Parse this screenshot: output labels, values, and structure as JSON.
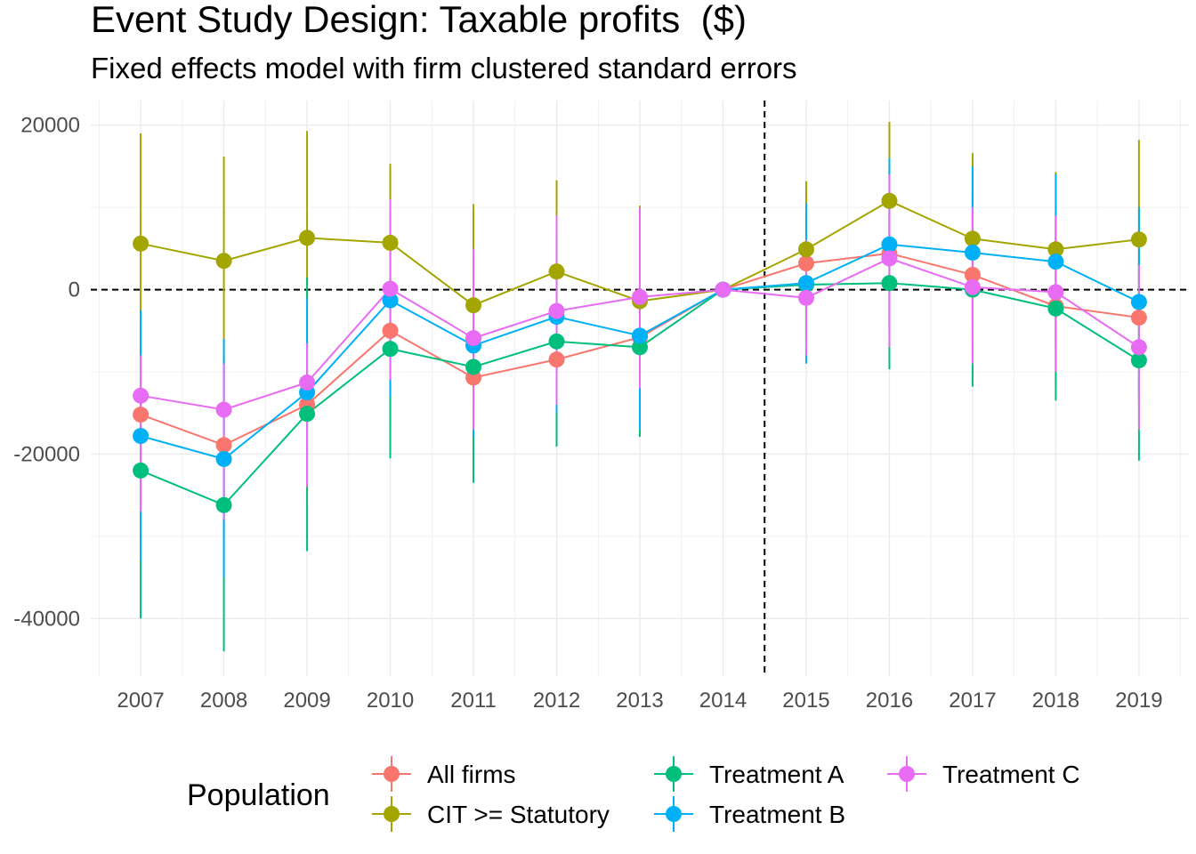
{
  "chart_data": {
    "type": "line",
    "title": "Event Study Design: Taxable profits  ($)",
    "subtitle": "Fixed effects model with firm clustered standard errors",
    "xlabel": "",
    "ylabel": "",
    "x": [
      2007,
      2008,
      2009,
      2010,
      2011,
      2012,
      2013,
      2014,
      2015,
      2016,
      2017,
      2018,
      2019
    ],
    "ylim": [
      -47000,
      23000
    ],
    "yticks": [
      20000,
      0,
      -20000,
      -40000
    ],
    "ytick_labels": [
      "20000",
      "0",
      "-20000",
      "-40000"
    ],
    "xtick_labels": [
      "2007",
      "2008",
      "2009",
      "2010",
      "2011",
      "2012",
      "2013",
      "2014",
      "2015",
      "2016",
      "2017",
      "2018",
      "2019"
    ],
    "reference_lines": {
      "horizontal": 0,
      "vertical": 2014.5
    },
    "grid": true,
    "legend": {
      "title": "Population",
      "position": "bottom"
    },
    "series": [
      {
        "name": "All firms",
        "color": "#F8766D",
        "values": [
          -15200,
          -18900,
          -14000,
          -5000,
          -10700,
          -8500,
          -5800,
          0,
          3200,
          4400,
          1800,
          -2000,
          -3400
        ],
        "lower": [
          -27000,
          -30000,
          -26000,
          -17000,
          -21000,
          -19000,
          -16000,
          0,
          -6000,
          -6000,
          -8000,
          -12000,
          -14000
        ],
        "upper": [
          -3000,
          -8000,
          -2000,
          7000,
          0,
          2000,
          5000,
          0,
          12000,
          15000,
          12000,
          8000,
          7000
        ]
      },
      {
        "name": "CIT >= Statutory",
        "color": "#A3A500",
        "values": [
          5600,
          3500,
          6300,
          5700,
          -1900,
          2200,
          -1400,
          0,
          4900,
          10800,
          6200,
          4900,
          6100
        ],
        "lower": [
          -8000,
          -9000,
          -7000,
          -4000,
          -14000,
          -9000,
          -13000,
          0,
          -3500,
          1500,
          -4000,
          -4500,
          -6000
        ],
        "upper": [
          19000,
          16200,
          19300,
          15300,
          10400,
          13300,
          10200,
          0,
          13200,
          20400,
          16600,
          14300,
          18200
        ]
      },
      {
        "name": "Treatment A",
        "color": "#00BF7D",
        "values": [
          -22000,
          -26200,
          -15100,
          -7200,
          -9400,
          -6300,
          -7000,
          0,
          600,
          800,
          0,
          -2300,
          -8600
        ],
        "lower": [
          -40000,
          -44000,
          -31800,
          -20500,
          -23500,
          -19100,
          -17900,
          0,
          -8000,
          -9700,
          -11800,
          -13500,
          -20800
        ],
        "upper": [
          -4000,
          -8500,
          1500,
          6000,
          4800,
          6500,
          4000,
          0,
          9000,
          11000,
          11500,
          9000,
          3500
        ]
      },
      {
        "name": "Treatment B",
        "color": "#00B0F6",
        "values": [
          -17800,
          -20600,
          -12500,
          -1300,
          -6800,
          -3300,
          -5600,
          0,
          800,
          5500,
          4500,
          3400,
          -1500
        ],
        "lower": [
          -33000,
          -35000,
          -24000,
          -13000,
          -18000,
          -15000,
          -17000,
          0,
          -9000,
          -5000,
          -6000,
          -7000,
          -13000
        ],
        "upper": [
          -2500,
          -6000,
          -1000,
          10000,
          4000,
          8000,
          6000,
          0,
          10500,
          16000,
          15000,
          14000,
          10000
        ]
      },
      {
        "name": "Treatment C",
        "color": "#E76BF3",
        "values": [
          -12900,
          -14600,
          -11300,
          100,
          -5900,
          -2600,
          -900,
          0,
          -1000,
          3800,
          300,
          -300,
          -7000
        ],
        "lower": [
          -27000,
          -28000,
          -24000,
          -11000,
          -17000,
          -14000,
          -12000,
          0,
          -8000,
          -7000,
          -9000,
          -10000,
          -17000
        ],
        "upper": [
          -8000,
          -9000,
          -6500,
          11000,
          5000,
          9000,
          10000,
          0,
          6000,
          14000,
          10000,
          9000,
          3000
        ]
      }
    ]
  }
}
